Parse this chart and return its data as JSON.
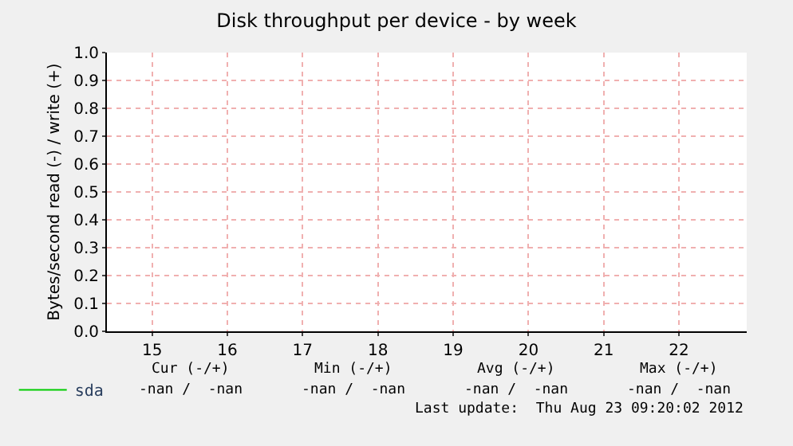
{
  "chart_data": {
    "type": "line",
    "title": "Disk throughput per device - by week",
    "ylabel": "Bytes/second read (-) / write (+)",
    "categories": [
      "15",
      "16",
      "17",
      "18",
      "19",
      "20",
      "21",
      "22"
    ],
    "ylim": [
      0,
      1
    ],
    "yticks": [
      {
        "value": 0,
        "label": "0.0"
      },
      {
        "value": 0.1,
        "label": "0.1"
      },
      {
        "value": 0.2,
        "label": "0.2"
      },
      {
        "value": 0.3,
        "label": "0.3"
      },
      {
        "value": 0.4,
        "label": "0.4"
      },
      {
        "value": 0.5,
        "label": "0.5"
      },
      {
        "value": 0.6,
        "label": "0.6"
      },
      {
        "value": 0.7,
        "label": "0.7"
      },
      {
        "value": 0.8,
        "label": "0.8"
      },
      {
        "value": 0.9,
        "label": "0.9"
      },
      {
        "value": 1,
        "label": "1.0"
      }
    ],
    "series": [
      {
        "name": "sda",
        "color": "#00cc00",
        "values": [
          null,
          null,
          null,
          null,
          null,
          null,
          null,
          null
        ]
      }
    ],
    "grid": true,
    "legend": "bottom left",
    "annotations": [
      "Cur (-/+)",
      "Min (-/+)",
      "Avg (-/+)",
      "Max (-/+)",
      "-nan /  -nan",
      "-nan /  -nan",
      "-nan /  -nan",
      "-nan /  -nan",
      "Last update:  Thu Aug 23 09:20:02 2012"
    ]
  }
}
